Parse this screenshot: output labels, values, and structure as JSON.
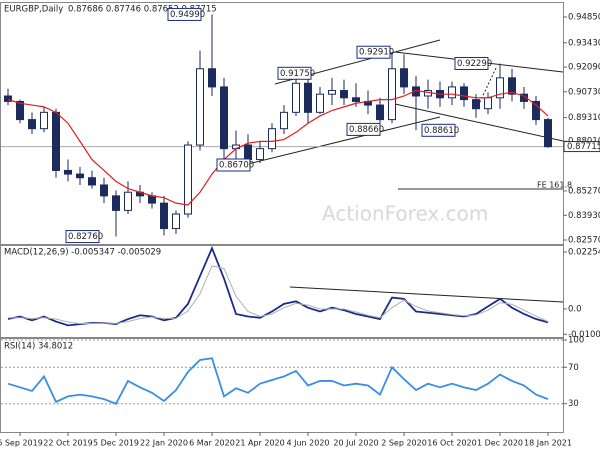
{
  "chart_data": [
    {
      "type": "candlestick",
      "title": "EURGBP,Daily",
      "subtitle": "0.87686 0.87746 0.87652 0.87715",
      "categories": [
        null,
        "6 Sep 2019",
        null,
        null,
        null,
        "22 Oct 2019",
        null,
        null,
        null,
        "5 Dec 2019",
        null,
        null,
        null,
        "22 Jan 2020",
        null,
        null,
        null,
        "6 Mar 2020",
        null,
        null,
        null,
        "21 Apr 2020",
        null,
        null,
        null,
        "4 Jun 2020",
        null,
        null,
        null,
        "20 Jul 2020",
        null,
        null,
        null,
        "2 Sep 2020",
        null,
        null,
        null,
        "16 Oct 2020",
        null,
        null,
        null,
        "1 Dec 2020",
        null,
        null,
        null,
        "18 Jan 2021"
      ],
      "open": [
        0.905,
        0.902,
        0.892,
        0.887,
        0.896,
        0.864,
        0.862,
        0.86,
        0.856,
        0.85,
        0.842,
        0.852,
        0.85,
        0.846,
        0.832,
        0.84,
        0.878,
        0.92,
        0.91,
        0.876,
        0.878,
        0.87,
        0.876,
        0.887,
        0.896,
        0.912,
        0.896,
        0.906,
        0.908,
        0.904,
        0.902,
        0.9,
        0.892,
        0.92,
        0.91,
        0.905,
        0.908,
        0.904,
        0.91,
        0.903,
        0.898,
        0.904,
        0.915,
        0.906,
        0.902,
        0.892
      ],
      "high": [
        0.909,
        0.903,
        0.896,
        0.899,
        0.898,
        0.87,
        0.866,
        0.864,
        0.86,
        0.853,
        0.858,
        0.856,
        0.852,
        0.85,
        0.842,
        0.88,
        0.93,
        0.9499,
        0.915,
        0.886,
        0.884,
        0.88,
        0.89,
        0.9,
        0.9175,
        0.916,
        0.91,
        0.915,
        0.914,
        0.912,
        0.908,
        0.904,
        0.9291,
        0.928,
        0.916,
        0.914,
        0.913,
        0.913,
        0.912,
        0.906,
        0.907,
        0.9229,
        0.92,
        0.91,
        0.905,
        0.893
      ],
      "low": [
        0.9,
        0.89,
        0.884,
        0.885,
        0.86,
        0.858,
        0.856,
        0.854,
        0.846,
        0.8276,
        0.84,
        0.846,
        0.843,
        0.8282,
        0.829,
        0.838,
        0.875,
        0.905,
        0.87,
        0.87,
        0.867,
        0.868,
        0.874,
        0.884,
        0.894,
        0.89,
        0.895,
        0.9,
        0.9,
        0.899,
        0.895,
        0.8866,
        0.89,
        0.906,
        0.8861,
        0.898,
        0.899,
        0.9,
        0.899,
        0.893,
        0.895,
        0.898,
        0.902,
        0.898,
        0.889,
        0.8765
      ],
      "close": [
        0.902,
        0.892,
        0.887,
        0.896,
        0.864,
        0.862,
        0.86,
        0.856,
        0.85,
        0.842,
        0.852,
        0.85,
        0.846,
        0.832,
        0.84,
        0.878,
        0.92,
        0.91,
        0.876,
        0.878,
        0.87,
        0.876,
        0.887,
        0.896,
        0.912,
        0.896,
        0.906,
        0.908,
        0.904,
        0.902,
        0.9,
        0.892,
        0.92,
        0.91,
        0.905,
        0.908,
        0.904,
        0.91,
        0.903,
        0.898,
        0.904,
        0.915,
        0.906,
        0.902,
        0.892,
        0.8771
      ],
      "up_color": "#ffffff",
      "down_color": "#1b2b5c",
      "ma": {
        "color": "#e02020",
        "values": [
          0.903,
          0.901,
          0.9,
          0.899,
          0.896,
          0.89,
          0.88,
          0.87,
          0.864,
          0.858,
          0.854,
          0.852,
          0.85,
          0.849,
          0.846,
          0.845,
          0.852,
          0.862,
          0.87,
          0.876,
          0.879,
          0.88,
          0.88,
          0.881,
          0.885,
          0.89,
          0.894,
          0.897,
          0.899,
          0.901,
          0.902,
          0.903,
          0.903,
          0.905,
          0.908,
          0.907,
          0.906,
          0.906,
          0.905,
          0.904,
          0.904,
          0.906,
          0.907,
          0.905,
          0.9,
          0.894
        ]
      },
      "ylim": [
        0.8235,
        0.9551
      ],
      "yticks": [
        {
          "value": 0.9485,
          "label": "0.94850"
        },
        {
          "value": 0.9343,
          "label": "0.93430"
        },
        {
          "value": 0.9209,
          "label": "0.92090"
        },
        {
          "value": 0.9073,
          "label": "0.90730"
        },
        {
          "value": 0.8931,
          "label": "0.89310"
        },
        {
          "value": 0.8801,
          "label": "0.88010"
        },
        {
          "value": 0.8527,
          "label": "0.85270"
        },
        {
          "value": 0.8393,
          "label": "0.83930"
        },
        {
          "value": 0.8257,
          "label": "0.82570"
        }
      ],
      "last_price": {
        "value": 0.87715,
        "label": "0.87715"
      },
      "annotations": [
        {
          "value": 0.9499,
          "label": "0.94990"
        },
        {
          "value": 0.9291,
          "label": "0.92910"
        },
        {
          "value": 0.9229,
          "label": "0.92290"
        },
        {
          "value": 0.9175,
          "label": "0.91750"
        },
        {
          "value": 0.8866,
          "label": "0.88660"
        },
        {
          "value": 0.8861,
          "label": "0.88610"
        },
        {
          "value": 0.867,
          "label": "0.86700"
        },
        {
          "value": 0.8276,
          "label": "0.82760"
        }
      ],
      "fe_label": "FE 161.8",
      "watermark": "ActionForex.com"
    },
    {
      "type": "line",
      "title": "MACD(12,26,9) -0.005347 -0.005029",
      "series": [
        {
          "color": "#1b2b8c",
          "values": [
            -0.004,
            -0.003,
            -0.0045,
            -0.003,
            -0.005,
            -0.0065,
            -0.006,
            -0.0055,
            -0.0055,
            -0.006,
            -0.004,
            -0.0025,
            -0.003,
            -0.0045,
            -0.0035,
            0.002,
            0.013,
            0.024,
            0.012,
            -0.002,
            -0.003,
            -0.0035,
            -0.001,
            0.002,
            0.003,
            0.0005,
            -0.001,
            0.0005,
            -0.0005,
            -0.002,
            -0.003,
            -0.004,
            0.0045,
            0.004,
            -0.001,
            -0.0015,
            -0.002,
            -0.0025,
            -0.003,
            -0.002,
            0.001,
            0.004,
            0.0005,
            -0.002,
            -0.004,
            -0.0053
          ]
        },
        {
          "color": "#b0b0b0",
          "values": [
            -0.0035,
            -0.0035,
            -0.0038,
            -0.0035,
            -0.004,
            -0.0052,
            -0.0058,
            -0.0057,
            -0.0055,
            -0.0057,
            -0.005,
            -0.0038,
            -0.0032,
            -0.0038,
            -0.0037,
            -0.0008,
            0.006,
            0.017,
            0.016,
            0.005,
            -0.001,
            -0.003,
            -0.002,
            0.0005,
            0.0022,
            0.0015,
            0,
            0,
            0,
            -0.0012,
            -0.0025,
            -0.0035,
            0.0005,
            0.0035,
            0.001,
            -0.0008,
            -0.0015,
            -0.0022,
            -0.0027,
            -0.0024,
            -0.0005,
            0.0025,
            0.0018,
            -0.0005,
            -0.0028,
            -0.005
          ]
        }
      ],
      "ylim": [
        -0.0111,
        0.0245
      ],
      "yticks": [
        0.022544,
        {
          "value": 0,
          "label": "0.0"
        },
        -0.010039
      ]
    },
    {
      "type": "line",
      "title": "RSI(14) 34.8012",
      "series": [
        {
          "color": "#3a8ee6",
          "values": [
            52,
            48,
            44,
            60,
            32,
            38,
            40,
            38,
            35,
            30,
            55,
            48,
            42,
            33,
            45,
            65,
            78,
            80,
            38,
            47,
            42,
            52,
            56,
            60,
            66,
            50,
            55,
            55,
            50,
            52,
            50,
            40,
            70,
            57,
            45,
            52,
            48,
            52,
            48,
            45,
            52,
            62,
            55,
            50,
            40,
            35
          ]
        }
      ],
      "ylim": [
        0,
        100
      ],
      "yticks": [
        100,
        70,
        30
      ]
    }
  ]
}
